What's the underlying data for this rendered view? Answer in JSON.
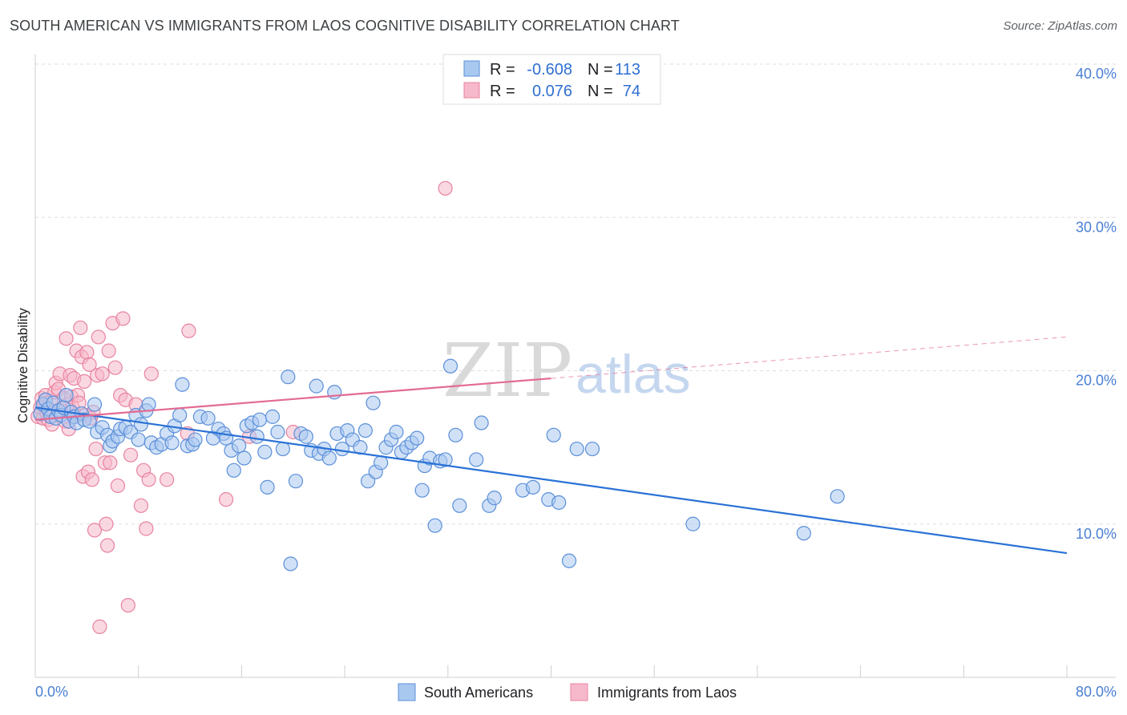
{
  "title": "SOUTH AMERICAN VS IMMIGRANTS FROM LAOS COGNITIVE DISABILITY CORRELATION CHART",
  "source": "Source: ZipAtlas.com",
  "watermark": {
    "zip": "ZIP",
    "atlas": "atlas"
  },
  "colors": {
    "blue_fill": "#a9c8f0",
    "blue_stroke": "#5b8fd9",
    "blue_line": "#2a72d6",
    "pink_fill": "#f6b8cb",
    "pink_stroke": "#e8839f",
    "pink_line": "#e36b93",
    "axis_text": "#4a7fd4",
    "grid": "#dddddd"
  },
  "legend_box": {
    "rows": [
      {
        "r_label": "R =",
        "r_value": "-0.608",
        "n_label": "N =",
        "n_value": "113",
        "series": "blue"
      },
      {
        "r_label": "R =",
        "r_value": "0.076",
        "n_label": "N =",
        "n_value": "74",
        "series": "pink"
      }
    ]
  },
  "bottom_legend": [
    "South Americans",
    "Immigrants from Laos"
  ],
  "chart_data": {
    "type": "scatter",
    "title": "SOUTH AMERICAN VS IMMIGRANTS FROM LAOS COGNITIVE DISABILITY CORRELATION CHART",
    "xlabel": "",
    "ylabel": "Cognitive Disability",
    "xlim": [
      0,
      80
    ],
    "ylim": [
      0,
      40
    ],
    "x_tick_labels": [
      "0.0%",
      "80.0%"
    ],
    "y_ticks": [
      10,
      20,
      30,
      40
    ],
    "y_tick_labels": [
      "10.0%",
      "20.0%",
      "30.0%",
      "40.0%"
    ],
    "grid": "horizontal dashed",
    "legend_position": "top-center",
    "series": [
      {
        "name": "South Americans",
        "color": "blue",
        "R": -0.608,
        "N": 113,
        "trend": {
          "x": [
            0,
            80
          ],
          "y": [
            17.6,
            8.1
          ],
          "style": "solid"
        },
        "points": [
          [
            0.4,
            17.2
          ],
          [
            0.6,
            17.8
          ],
          [
            0.8,
            18.1
          ],
          [
            1.0,
            17.5
          ],
          [
            1.2,
            17.0
          ],
          [
            1.4,
            17.9
          ],
          [
            1.6,
            16.9
          ],
          [
            1.8,
            17.4
          ],
          [
            2.0,
            17.1
          ],
          [
            2.2,
            17.6
          ],
          [
            2.4,
            18.4
          ],
          [
            2.6,
            16.7
          ],
          [
            2.8,
            17.3
          ],
          [
            3.0,
            17.0
          ],
          [
            3.2,
            16.6
          ],
          [
            3.6,
            17.2
          ],
          [
            3.8,
            16.8
          ],
          [
            4.2,
            16.7
          ],
          [
            4.6,
            17.8
          ],
          [
            4.8,
            16.0
          ],
          [
            5.2,
            16.3
          ],
          [
            5.6,
            15.8
          ],
          [
            5.8,
            15.1
          ],
          [
            6.0,
            15.4
          ],
          [
            6.4,
            15.7
          ],
          [
            6.6,
            16.2
          ],
          [
            7.0,
            16.3
          ],
          [
            7.4,
            16.0
          ],
          [
            7.8,
            17.1
          ],
          [
            8.0,
            15.5
          ],
          [
            8.2,
            16.5
          ],
          [
            8.6,
            17.4
          ],
          [
            8.8,
            17.8
          ],
          [
            9.0,
            15.3
          ],
          [
            9.4,
            15.0
          ],
          [
            9.8,
            15.2
          ],
          [
            10.2,
            15.9
          ],
          [
            10.6,
            15.3
          ],
          [
            10.8,
            16.4
          ],
          [
            11.2,
            17.1
          ],
          [
            11.4,
            19.1
          ],
          [
            11.8,
            15.1
          ],
          [
            12.2,
            15.2
          ],
          [
            12.4,
            15.5
          ],
          [
            12.8,
            17.0
          ],
          [
            13.4,
            16.9
          ],
          [
            13.8,
            15.6
          ],
          [
            14.2,
            16.2
          ],
          [
            14.6,
            15.9
          ],
          [
            14.8,
            15.6
          ],
          [
            15.2,
            14.8
          ],
          [
            15.4,
            13.5
          ],
          [
            15.8,
            15.1
          ],
          [
            16.2,
            14.3
          ],
          [
            16.4,
            16.4
          ],
          [
            16.8,
            16.6
          ],
          [
            17.2,
            15.7
          ],
          [
            17.4,
            16.8
          ],
          [
            17.8,
            14.7
          ],
          [
            18.0,
            12.4
          ],
          [
            18.4,
            17.0
          ],
          [
            18.8,
            16.0
          ],
          [
            19.2,
            14.9
          ],
          [
            19.6,
            19.6
          ],
          [
            19.8,
            7.4
          ],
          [
            20.2,
            12.8
          ],
          [
            20.6,
            15.9
          ],
          [
            21.0,
            15.7
          ],
          [
            21.4,
            14.8
          ],
          [
            21.8,
            19.0
          ],
          [
            22.0,
            14.6
          ],
          [
            22.4,
            14.9
          ],
          [
            22.8,
            14.3
          ],
          [
            23.2,
            18.6
          ],
          [
            23.4,
            15.9
          ],
          [
            23.8,
            14.9
          ],
          [
            24.2,
            16.1
          ],
          [
            24.6,
            15.5
          ],
          [
            25.2,
            15.0
          ],
          [
            25.6,
            16.1
          ],
          [
            25.8,
            12.8
          ],
          [
            26.2,
            17.9
          ],
          [
            26.4,
            13.4
          ],
          [
            26.8,
            14.0
          ],
          [
            27.2,
            15.0
          ],
          [
            27.6,
            15.5
          ],
          [
            28.0,
            16.0
          ],
          [
            28.4,
            14.7
          ],
          [
            28.8,
            15.0
          ],
          [
            29.2,
            15.3
          ],
          [
            29.6,
            15.6
          ],
          [
            30.0,
            12.2
          ],
          [
            30.2,
            13.8
          ],
          [
            30.6,
            14.3
          ],
          [
            31.0,
            9.9
          ],
          [
            31.4,
            14.1
          ],
          [
            31.8,
            14.2
          ],
          [
            32.2,
            20.3
          ],
          [
            32.6,
            15.8
          ],
          [
            32.9,
            11.2
          ],
          [
            34.2,
            14.2
          ],
          [
            34.6,
            16.6
          ],
          [
            35.2,
            11.2
          ],
          [
            35.6,
            11.7
          ],
          [
            37.8,
            12.2
          ],
          [
            38.6,
            12.4
          ],
          [
            39.8,
            11.6
          ],
          [
            40.2,
            15.8
          ],
          [
            40.6,
            11.4
          ],
          [
            41.4,
            7.6
          ],
          [
            42.0,
            14.9
          ],
          [
            43.2,
            14.9
          ],
          [
            51.0,
            10.0
          ],
          [
            59.6,
            9.4
          ],
          [
            62.2,
            11.8
          ]
        ]
      },
      {
        "name": "Immigrants from Laos",
        "color": "pink",
        "R": 0.076,
        "N": 74,
        "trend": {
          "x": [
            0,
            40
          ],
          "y": [
            16.8,
            19.5
          ],
          "style": "solid",
          "extension": {
            "x": [
              40,
              80
            ],
            "y": [
              19.5,
              22.2
            ],
            "style": "dashed"
          }
        },
        "points": [
          [
            0.2,
            17.0
          ],
          [
            0.4,
            17.6
          ],
          [
            0.5,
            18.2
          ],
          [
            0.6,
            16.9
          ],
          [
            0.7,
            17.9
          ],
          [
            0.8,
            18.4
          ],
          [
            0.9,
            17.2
          ],
          [
            1.0,
            16.8
          ],
          [
            1.1,
            17.5
          ],
          [
            1.2,
            18.0
          ],
          [
            1.3,
            16.5
          ],
          [
            1.4,
            17.3
          ],
          [
            1.5,
            18.6
          ],
          [
            1.6,
            19.2
          ],
          [
            1.7,
            17.1
          ],
          [
            1.8,
            18.8
          ],
          [
            1.9,
            19.8
          ],
          [
            2.0,
            17.4
          ],
          [
            2.2,
            18.2
          ],
          [
            2.3,
            16.7
          ],
          [
            2.4,
            22.1
          ],
          [
            2.5,
            17.8
          ],
          [
            2.6,
            16.2
          ],
          [
            2.7,
            19.7
          ],
          [
            2.8,
            18.3
          ],
          [
            2.9,
            17.6
          ],
          [
            3.0,
            19.5
          ],
          [
            3.1,
            17.0
          ],
          [
            3.2,
            21.3
          ],
          [
            3.3,
            18.4
          ],
          [
            3.4,
            17.9
          ],
          [
            3.5,
            22.8
          ],
          [
            3.6,
            20.9
          ],
          [
            3.7,
            13.1
          ],
          [
            3.8,
            19.3
          ],
          [
            3.9,
            17.1
          ],
          [
            4.0,
            21.2
          ],
          [
            4.1,
            13.4
          ],
          [
            4.2,
            20.4
          ],
          [
            4.3,
            16.9
          ],
          [
            4.4,
            12.9
          ],
          [
            4.5,
            17.3
          ],
          [
            4.6,
            9.6
          ],
          [
            4.7,
            14.9
          ],
          [
            4.8,
            19.7
          ],
          [
            4.9,
            22.2
          ],
          [
            5.0,
            3.3
          ],
          [
            5.2,
            19.8
          ],
          [
            5.4,
            14.0
          ],
          [
            5.5,
            10.0
          ],
          [
            5.6,
            8.6
          ],
          [
            5.7,
            21.3
          ],
          [
            5.8,
            14.0
          ],
          [
            6.0,
            23.1
          ],
          [
            6.2,
            20.2
          ],
          [
            6.4,
            12.5
          ],
          [
            6.6,
            18.4
          ],
          [
            6.8,
            23.4
          ],
          [
            7.0,
            18.1
          ],
          [
            7.2,
            4.7
          ],
          [
            7.4,
            14.5
          ],
          [
            7.8,
            17.8
          ],
          [
            8.2,
            11.2
          ],
          [
            8.4,
            13.5
          ],
          [
            8.6,
            9.7
          ],
          [
            8.8,
            12.9
          ],
          [
            9.0,
            19.8
          ],
          [
            10.2,
            12.9
          ],
          [
            11.8,
            15.9
          ],
          [
            11.9,
            22.6
          ],
          [
            14.8,
            11.6
          ],
          [
            16.6,
            15.7
          ],
          [
            20.0,
            16.0
          ],
          [
            31.8,
            31.9
          ]
        ]
      }
    ]
  }
}
